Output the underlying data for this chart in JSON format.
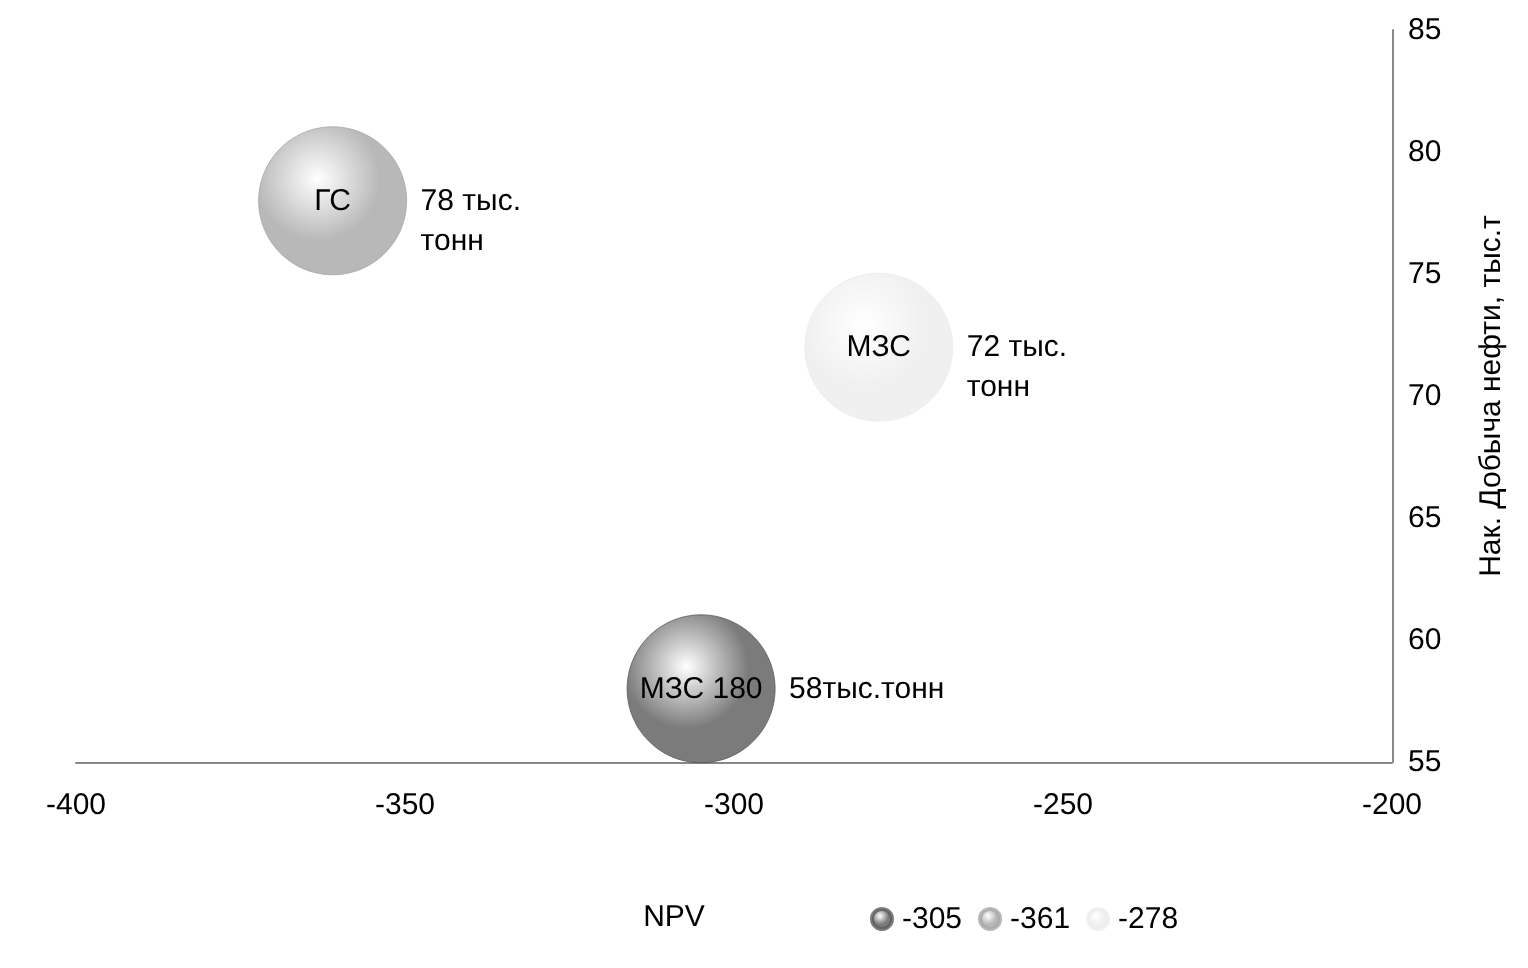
{
  "chart_data": {
    "type": "bubble",
    "xlabel": "NPV",
    "ylabel": "Нак. Добыча нефти, тыс.т",
    "xlim": [
      -400,
      -200
    ],
    "xticks": [
      -400,
      -350,
      -300,
      -250,
      -200
    ],
    "ylim": [
      55,
      85
    ],
    "yticks": [
      55,
      60,
      65,
      70,
      75,
      80,
      85
    ],
    "grid": false,
    "legend": "bottom",
    "series": [
      {
        "name": "-305",
        "color": "#5a5a5a",
        "x": [
          -305
        ],
        "values": [
          58
        ],
        "sizes": [
          1
        ]
      },
      {
        "name": "-361",
        "color": "#a6a6a6",
        "x": [
          -361
        ],
        "values": [
          78
        ],
        "sizes": [
          1
        ]
      },
      {
        "name": "-278",
        "color": "#ececec",
        "x": [
          -278
        ],
        "values": [
          72
        ],
        "sizes": [
          1
        ]
      }
    ],
    "annotations": [
      {
        "text": "ГС",
        "x": -361,
        "y": 78
      },
      {
        "text": "78 тыс. тонн",
        "x": -361,
        "y": 78
      },
      {
        "text": "МЗС",
        "x": -278,
        "y": 72
      },
      {
        "text": "72 тыс. тонн",
        "x": -278,
        "y": 72
      },
      {
        "text": "МЗС 180",
        "x": -305,
        "y": 58
      },
      {
        "text": "58тыс.тонн",
        "x": -305,
        "y": 58
      }
    ]
  }
}
